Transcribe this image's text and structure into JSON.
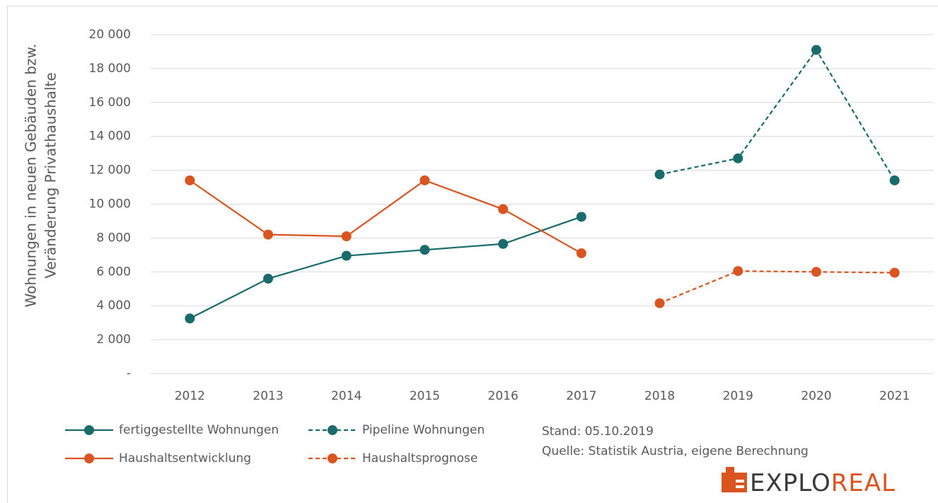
{
  "chart_data": {
    "type": "line",
    "ylabel": [
      "Wohnungen in neuen Gebäuden bzw.",
      "Veränderung Privathaushalte"
    ],
    "categories": [
      "2012",
      "2013",
      "2014",
      "2015",
      "2016",
      "2017",
      "2018",
      "2019",
      "2020",
      "2021"
    ],
    "series": [
      {
        "name": "fertiggestellte Wohnungen",
        "color": "#1a6b6b",
        "dashed": false,
        "values": [
          3250,
          5600,
          6950,
          7300,
          7650,
          9250,
          null,
          null,
          null,
          null
        ]
      },
      {
        "name": "Pipeline Wohnungen",
        "color": "#1a6b6b",
        "dashed": true,
        "values": [
          null,
          null,
          null,
          null,
          null,
          null,
          11750,
          12700,
          19100,
          11400
        ]
      },
      {
        "name": "Haushaltsentwicklung",
        "color": "#d9541e",
        "dashed": false,
        "values": [
          11400,
          8200,
          8100,
          11400,
          9700,
          7100,
          null,
          null,
          null,
          null
        ]
      },
      {
        "name": "Haushaltsprognose",
        "color": "#d9541e",
        "dashed": true,
        "values": [
          null,
          null,
          null,
          null,
          null,
          null,
          4150,
          6050,
          6000,
          5950
        ]
      }
    ],
    "ylim": [
      0,
      20000
    ],
    "yticks": [
      {
        "value": 0,
        "label": "-"
      },
      {
        "value": 2000,
        "label": "2 000"
      },
      {
        "value": 4000,
        "label": "4 000"
      },
      {
        "value": 6000,
        "label": "6 000"
      },
      {
        "value": 8000,
        "label": "8 000"
      },
      {
        "value": 10000,
        "label": "10 000"
      },
      {
        "value": 12000,
        "label": "12 000"
      },
      {
        "value": 14000,
        "label": "14 000"
      },
      {
        "value": 16000,
        "label": "16 000"
      },
      {
        "value": 18000,
        "label": "18 000"
      },
      {
        "value": 20000,
        "label": "20 000"
      }
    ],
    "grid": true,
    "annotations": [
      "Stand: 05.10.2019",
      "Quelle: Statistik Austria, eigene Berechnung"
    ],
    "logo": [
      "EXPLO",
      "REAL"
    ]
  }
}
